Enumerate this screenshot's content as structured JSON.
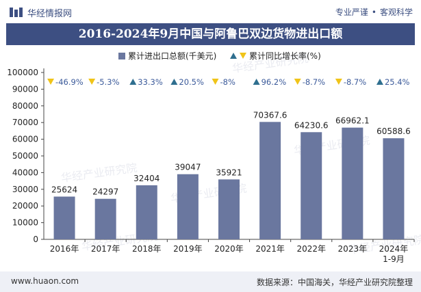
{
  "header": {
    "brand": "华经情报网",
    "tag_left": "专业严谨",
    "tag_dot": "•",
    "tag_right": "客观科学"
  },
  "title": "2016-2024年9月中国与阿鲁巴双边货物进出口额",
  "footer": {
    "url": "www.huaon.com",
    "source": "数据来源：中国海关，华经产业研究院整理"
  },
  "watermark": "华经产业研究院",
  "colors": {
    "bar": "#6a779f",
    "title_bg": "#3d4f82",
    "triangle_up": "#2f6f8f",
    "triangle_down": "#f0c419",
    "rate_text": "#3b5a9a"
  },
  "chart_data": {
    "type": "bar",
    "categories": [
      "2016年",
      "2017年",
      "2018年",
      "2019年",
      "2020年",
      "2021年",
      "2022年",
      "2023年",
      "2024年\n1-9月"
    ],
    "series": [
      {
        "name": "累计进出口总额(千美元)",
        "values": [
          25624,
          24297,
          32404,
          39047,
          35921,
          70367.6,
          64230.6,
          66962.1,
          60588.6
        ],
        "labels": [
          "25624",
          "24297",
          "32404",
          "39047",
          "35921",
          "70367.6",
          "64230.6",
          "66962.1",
          "60588.6"
        ]
      },
      {
        "name": "累计同比增长率(%)",
        "values": [
          -46.9,
          -5.3,
          33.3,
          20.5,
          -8,
          96.2,
          -8.7,
          -8.7,
          25.4
        ],
        "labels": [
          "-46.9%",
          "-5.3%",
          "33.3%",
          "20.5%",
          "-8%",
          "96.2%",
          "-8.7%",
          "-8.7%",
          "25.4%"
        ]
      }
    ],
    "yticks": [
      "0",
      "10000",
      "20000",
      "30000",
      "40000",
      "50000",
      "60000",
      "70000",
      "80000",
      "90000",
      "100000"
    ],
    "ylim": [
      0,
      100000
    ],
    "legend_position": "top-center",
    "grid": false
  }
}
